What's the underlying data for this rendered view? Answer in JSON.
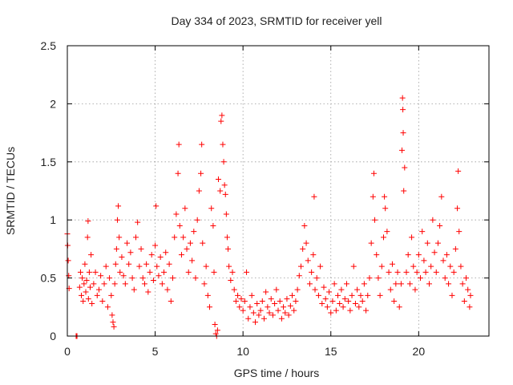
{
  "chart_data": {
    "type": "scatter",
    "title": "Day 334 of 2023, SRMTID for receiver yell",
    "xlabel": "GPS time / hours",
    "ylabel": "SRMTID / TECUs",
    "xlim": [
      0,
      24
    ],
    "ylim": [
      0,
      2.5
    ],
    "x_ticks": [
      0,
      5,
      10,
      15,
      20
    ],
    "x_tick_labels": [
      "0",
      "5",
      "10",
      "15",
      "20"
    ],
    "y_ticks": [
      0,
      0.5,
      1,
      1.5,
      2,
      2.5
    ],
    "y_tick_labels": [
      "0",
      "0.5",
      "1",
      "1.5",
      "2",
      "2.5"
    ],
    "grid": true,
    "marker": "+",
    "color": "#ff0000",
    "series": [
      {
        "name": "SRMTID",
        "points": [
          [
            0.0,
            0.88
          ],
          [
            0.02,
            0.78
          ],
          [
            0.05,
            0.65
          ],
          [
            0.08,
            0.52
          ],
          [
            0.1,
            0.41
          ],
          [
            0.5,
            0.0
          ],
          [
            0.52,
            0.0
          ],
          [
            0.55,
            0.0
          ],
          [
            0.7,
            0.42
          ],
          [
            0.75,
            0.55
          ],
          [
            0.8,
            0.35
          ],
          [
            0.85,
            0.5
          ],
          [
            0.9,
            0.3
          ],
          [
            0.95,
            0.45
          ],
          [
            1.0,
            0.62
          ],
          [
            1.05,
            0.38
          ],
          [
            1.1,
            0.48
          ],
          [
            1.15,
            0.85
          ],
          [
            1.18,
            0.99
          ],
          [
            1.2,
            0.32
          ],
          [
            1.25,
            0.55
          ],
          [
            1.3,
            0.42
          ],
          [
            1.35,
            0.7
          ],
          [
            1.4,
            0.28
          ],
          [
            1.5,
            0.45
          ],
          [
            1.6,
            0.55
          ],
          [
            1.7,
            0.35
          ],
          [
            1.8,
            0.4
          ],
          [
            1.9,
            0.52
          ],
          [
            2.0,
            0.3
          ],
          [
            2.1,
            0.45
          ],
          [
            2.2,
            0.6
          ],
          [
            2.3,
            0.25
          ],
          [
            2.4,
            0.5
          ],
          [
            2.5,
            0.35
          ],
          [
            2.55,
            0.18
          ],
          [
            2.6,
            0.12
          ],
          [
            2.65,
            0.08
          ],
          [
            2.7,
            0.45
          ],
          [
            2.75,
            0.62
          ],
          [
            2.8,
            0.75
          ],
          [
            2.85,
            1.0
          ],
          [
            2.9,
            1.12
          ],
          [
            2.95,
            0.85
          ],
          [
            3.0,
            0.55
          ],
          [
            3.1,
            0.68
          ],
          [
            3.2,
            0.52
          ],
          [
            3.3,
            0.45
          ],
          [
            3.4,
            0.8
          ],
          [
            3.5,
            0.62
          ],
          [
            3.6,
            0.72
          ],
          [
            3.7,
            0.5
          ],
          [
            3.8,
            0.4
          ],
          [
            3.9,
            0.85
          ],
          [
            4.0,
            0.98
          ],
          [
            4.1,
            0.6
          ],
          [
            4.2,
            0.75
          ],
          [
            4.3,
            0.5
          ],
          [
            4.4,
            0.45
          ],
          [
            4.5,
            0.62
          ],
          [
            4.6,
            0.38
          ],
          [
            4.7,
            0.55
          ],
          [
            4.8,
            0.7
          ],
          [
            4.9,
            0.48
          ],
          [
            5.0,
            0.78
          ],
          [
            5.05,
            1.12
          ],
          [
            5.1,
            0.6
          ],
          [
            5.2,
            0.52
          ],
          [
            5.3,
            0.68
          ],
          [
            5.4,
            0.45
          ],
          [
            5.5,
            0.55
          ],
          [
            5.6,
            0.72
          ],
          [
            5.7,
            0.4
          ],
          [
            5.8,
            0.62
          ],
          [
            5.9,
            0.3
          ],
          [
            6.0,
            0.5
          ],
          [
            6.1,
            0.85
          ],
          [
            6.2,
            1.05
          ],
          [
            6.3,
            1.4
          ],
          [
            6.35,
            1.65
          ],
          [
            6.4,
            0.95
          ],
          [
            6.5,
            0.7
          ],
          [
            6.6,
            0.85
          ],
          [
            6.7,
            1.1
          ],
          [
            6.8,
            0.75
          ],
          [
            6.9,
            0.55
          ],
          [
            7.0,
            0.8
          ],
          [
            7.1,
            0.65
          ],
          [
            7.2,
            0.9
          ],
          [
            7.3,
            0.5
          ],
          [
            7.4,
            1.0
          ],
          [
            7.5,
            1.25
          ],
          [
            7.6,
            1.4
          ],
          [
            7.65,
            1.65
          ],
          [
            7.7,
            0.8
          ],
          [
            7.8,
            0.45
          ],
          [
            7.9,
            0.6
          ],
          [
            8.0,
            0.35
          ],
          [
            8.1,
            0.25
          ],
          [
            8.2,
            1.1
          ],
          [
            8.3,
            0.95
          ],
          [
            8.35,
            0.55
          ],
          [
            8.4,
            0.1
          ],
          [
            8.45,
            0.02
          ],
          [
            8.5,
            0.0
          ],
          [
            8.55,
            0.05
          ],
          [
            8.6,
            1.35
          ],
          [
            8.7,
            1.25
          ],
          [
            8.75,
            1.85
          ],
          [
            8.8,
            1.9
          ],
          [
            8.85,
            1.65
          ],
          [
            8.9,
            1.5
          ],
          [
            8.95,
            1.3
          ],
          [
            9.0,
            1.22
          ],
          [
            9.05,
            1.05
          ],
          [
            9.1,
            0.85
          ],
          [
            9.15,
            0.75
          ],
          [
            9.2,
            0.6
          ],
          [
            9.3,
            0.48
          ],
          [
            9.4,
            0.55
          ],
          [
            9.5,
            0.4
          ],
          [
            9.6,
            0.3
          ],
          [
            9.7,
            0.35
          ],
          [
            9.8,
            0.25
          ],
          [
            9.9,
            0.32
          ],
          [
            10.0,
            0.22
          ],
          [
            10.1,
            0.3
          ],
          [
            10.2,
            0.55
          ],
          [
            10.3,
            0.15
          ],
          [
            10.4,
            0.25
          ],
          [
            10.5,
            0.35
          ],
          [
            10.6,
            0.2
          ],
          [
            10.7,
            0.12
          ],
          [
            10.8,
            0.28
          ],
          [
            10.9,
            0.18
          ],
          [
            11.0,
            0.22
          ],
          [
            11.1,
            0.3
          ],
          [
            11.2,
            0.15
          ],
          [
            11.3,
            0.38
          ],
          [
            11.4,
            0.25
          ],
          [
            11.5,
            0.2
          ],
          [
            11.6,
            0.32
          ],
          [
            11.7,
            0.18
          ],
          [
            11.8,
            0.28
          ],
          [
            11.9,
            0.4
          ],
          [
            12.0,
            0.22
          ],
          [
            12.1,
            0.3
          ],
          [
            12.2,
            0.15
          ],
          [
            12.3,
            0.25
          ],
          [
            12.4,
            0.2
          ],
          [
            12.5,
            0.32
          ],
          [
            12.6,
            0.18
          ],
          [
            12.7,
            0.26
          ],
          [
            12.8,
            0.35
          ],
          [
            12.9,
            0.22
          ],
          [
            13.0,
            0.3
          ],
          [
            13.1,
            0.4
          ],
          [
            13.2,
            0.52
          ],
          [
            13.3,
            0.6
          ],
          [
            13.4,
            0.75
          ],
          [
            13.5,
            0.95
          ],
          [
            13.6,
            0.8
          ],
          [
            13.7,
            0.65
          ],
          [
            13.8,
            0.45
          ],
          [
            13.9,
            0.55
          ],
          [
            14.0,
            0.7
          ],
          [
            14.05,
            1.2
          ],
          [
            14.1,
            0.4
          ],
          [
            14.2,
            0.5
          ],
          [
            14.3,
            0.35
          ],
          [
            14.4,
            0.6
          ],
          [
            14.5,
            0.28
          ],
          [
            14.6,
            0.42
          ],
          [
            14.7,
            0.32
          ],
          [
            14.8,
            0.25
          ],
          [
            14.9,
            0.38
          ],
          [
            15.0,
            0.2
          ],
          [
            15.1,
            0.3
          ],
          [
            15.2,
            0.45
          ],
          [
            15.3,
            0.22
          ],
          [
            15.4,
            0.35
          ],
          [
            15.5,
            0.28
          ],
          [
            15.6,
            0.4
          ],
          [
            15.7,
            0.25
          ],
          [
            15.8,
            0.32
          ],
          [
            15.9,
            0.45
          ],
          [
            16.0,
            0.3
          ],
          [
            16.1,
            0.22
          ],
          [
            16.2,
            0.35
          ],
          [
            16.3,
            0.6
          ],
          [
            16.4,
            0.28
          ],
          [
            16.5,
            0.4
          ],
          [
            16.6,
            0.25
          ],
          [
            16.7,
            0.35
          ],
          [
            16.8,
            0.3
          ],
          [
            16.9,
            0.45
          ],
          [
            17.0,
            0.22
          ],
          [
            17.1,
            0.35
          ],
          [
            17.2,
            0.5
          ],
          [
            17.3,
            0.8
          ],
          [
            17.4,
            1.2
          ],
          [
            17.45,
            1.4
          ],
          [
            17.5,
            1.0
          ],
          [
            17.6,
            0.7
          ],
          [
            17.7,
            0.5
          ],
          [
            17.8,
            0.35
          ],
          [
            17.9,
            0.6
          ],
          [
            18.0,
            0.85
          ],
          [
            18.05,
            1.2
          ],
          [
            18.1,
            1.1
          ],
          [
            18.2,
            0.9
          ],
          [
            18.3,
            0.55
          ],
          [
            18.4,
            0.4
          ],
          [
            18.5,
            0.62
          ],
          [
            18.6,
            0.3
          ],
          [
            18.7,
            0.45
          ],
          [
            18.8,
            0.55
          ],
          [
            18.9,
            0.25
          ],
          [
            19.0,
            0.45
          ],
          [
            19.05,
            1.6
          ],
          [
            19.08,
            2.05
          ],
          [
            19.1,
            1.95
          ],
          [
            19.12,
            1.75
          ],
          [
            19.15,
            1.25
          ],
          [
            19.2,
            1.45
          ],
          [
            19.3,
            0.55
          ],
          [
            19.4,
            0.7
          ],
          [
            19.5,
            0.45
          ],
          [
            19.6,
            0.85
          ],
          [
            19.7,
            0.6
          ],
          [
            19.8,
            0.4
          ],
          [
            19.9,
            0.55
          ],
          [
            20.0,
            0.7
          ],
          [
            20.1,
            0.5
          ],
          [
            20.2,
            0.9
          ],
          [
            20.3,
            0.65
          ],
          [
            20.4,
            0.55
          ],
          [
            20.5,
            0.8
          ],
          [
            20.6,
            0.45
          ],
          [
            20.7,
            0.6
          ],
          [
            20.8,
            1.0
          ],
          [
            20.9,
            0.72
          ],
          [
            21.0,
            0.55
          ],
          [
            21.1,
            0.8
          ],
          [
            21.2,
            0.95
          ],
          [
            21.3,
            1.2
          ],
          [
            21.4,
            0.65
          ],
          [
            21.5,
            0.5
          ],
          [
            21.6,
            0.7
          ],
          [
            21.7,
            0.45
          ],
          [
            21.8,
            0.6
          ],
          [
            21.9,
            0.35
          ],
          [
            22.0,
            0.55
          ],
          [
            22.1,
            0.75
          ],
          [
            22.2,
            1.1
          ],
          [
            22.25,
            1.42
          ],
          [
            22.3,
            0.9
          ],
          [
            22.4,
            0.6
          ],
          [
            22.5,
            0.45
          ],
          [
            22.6,
            0.3
          ],
          [
            22.7,
            0.5
          ],
          [
            22.8,
            0.4
          ],
          [
            22.9,
            0.25
          ],
          [
            22.95,
            0.35
          ]
        ]
      }
    ]
  }
}
